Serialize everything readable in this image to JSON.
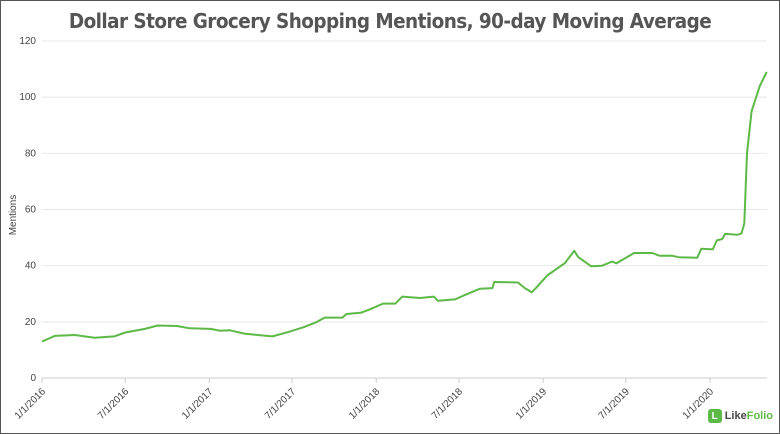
{
  "chart_data": {
    "type": "line",
    "title": "Dollar Store Grocery Shopping Mentions, 90-day Moving Average",
    "xlabel": "",
    "ylabel": "Mentions",
    "ylim": [
      0,
      120
    ],
    "yticks": [
      0,
      20,
      40,
      60,
      80,
      100,
      120
    ],
    "xlim": [
      "2016-01-01",
      "2020-05-04"
    ],
    "xticks": [
      {
        "date": "2016-01-01",
        "label": "1/1/2016"
      },
      {
        "date": "2016-07-01",
        "label": "7/1/2016"
      },
      {
        "date": "2017-01-01",
        "label": "1/1/2017"
      },
      {
        "date": "2017-07-01",
        "label": "7/1/2017"
      },
      {
        "date": "2018-01-01",
        "label": "1/1/2018"
      },
      {
        "date": "2018-07-01",
        "label": "7/1/2018"
      },
      {
        "date": "2019-01-01",
        "label": "1/1/2019"
      },
      {
        "date": "2019-07-01",
        "label": "7/1/2019"
      },
      {
        "date": "2020-01-01",
        "label": "1/1/2020"
      }
    ],
    "grid": "horizontal",
    "line_color": "#5cb947",
    "series": [
      {
        "x": [
          "2016-01-01",
          "2016-01-29",
          "2016-03-13",
          "2016-04-25",
          "2016-06-07",
          "2016-07-01",
          "2016-08-13",
          "2016-09-10",
          "2016-10-22",
          "2016-11-19",
          "2017-01-04",
          "2017-01-25",
          "2017-02-15",
          "2017-03-19",
          "2017-04-22",
          "2017-05-19",
          "2017-06-25",
          "2017-07-28",
          "2017-08-25",
          "2017-09-10",
          "2017-10-19",
          "2017-10-28",
          "2017-11-28",
          "2017-12-19",
          "2018-01-16",
          "2018-02-12",
          "2018-02-27",
          "2018-04-07",
          "2018-05-07",
          "2018-05-16",
          "2018-06-22",
          "2018-07-13",
          "2018-08-16",
          "2018-09-12",
          "2018-09-16",
          "2018-11-07",
          "2018-11-22",
          "2018-12-07",
          "2018-12-19",
          "2019-01-10",
          "2019-02-18",
          "2019-03-10",
          "2019-03-19",
          "2019-04-16",
          "2019-05-10",
          "2019-06-01",
          "2019-06-10",
          "2019-07-19",
          "2019-08-28",
          "2019-09-13",
          "2019-10-10",
          "2019-10-25",
          "2019-12-04",
          "2019-12-13",
          "2020-01-07",
          "2020-01-16",
          "2020-01-28",
          "2020-02-03",
          "2020-03-01",
          "2020-03-10",
          "2020-03-16",
          "2020-03-22",
          "2020-04-01",
          "2020-04-19",
          "2020-05-04"
        ],
        "y": [
          13,
          15,
          15.3,
          14.3,
          14.8,
          16.2,
          17.5,
          18.7,
          18.5,
          17.7,
          17.5,
          16.8,
          17,
          15.8,
          15.2,
          14.8,
          16.5,
          18.2,
          20,
          21.5,
          21.5,
          22.8,
          23.2,
          24.5,
          26.5,
          26.5,
          29,
          28.5,
          29,
          27.5,
          28,
          29.5,
          31.8,
          32,
          34.2,
          34,
          32,
          30.5,
          32.5,
          36.5,
          41,
          45.3,
          43,
          39.8,
          40,
          41.5,
          40.8,
          44.5,
          44.5,
          43.5,
          43.5,
          43,
          42.8,
          46,
          45.8,
          49,
          49.5,
          51.3,
          51,
          51.5,
          55,
          80,
          95,
          104,
          109
        ]
      }
    ]
  },
  "logo": {
    "text_a": "Like",
    "text_b": "Folio",
    "glyph": "L"
  }
}
